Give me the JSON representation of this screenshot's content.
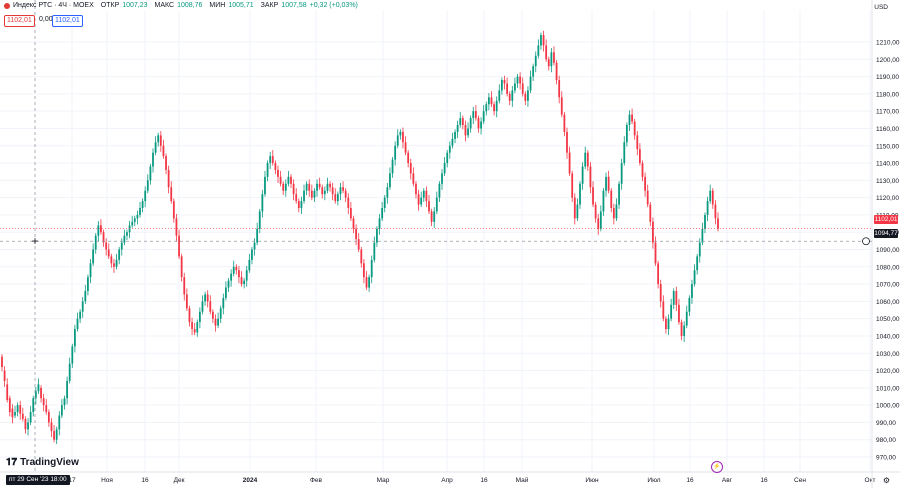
{
  "header": {
    "symbol_title": "Индекс РТС · 4Ч · MOEX",
    "ohlc_open_label": "ОТКР",
    "ohlc_open": "1007,23",
    "ohlc_high_label": "МАКС",
    "ohlc_high": "1008,76",
    "ohlc_low_label": "МИН",
    "ohlc_low": "1005,71",
    "ohlc_close_label": "ЗАКР",
    "ohlc_close": "1007,58",
    "ohlc_change": "+0,32 (+0,03%)",
    "sell_price": "1102,01",
    "spread": "0,00",
    "buy_price": "1102,01"
  },
  "currency": "USD",
  "last_price_tag": "1102,01",
  "crosshair_price_tag": "1094,77",
  "crosshair_date_tag": "пт 29 Сен '23  18:00",
  "brand": "TradingView",
  "colors": {
    "up": "#089981",
    "down": "#f23645",
    "grid": "#f0f3fa",
    "axis_text": "#131722"
  },
  "chart_data": {
    "type": "candlestick",
    "title": "Индекс РТС · 4Ч · MOEX",
    "ylim": [
      965,
      1215
    ],
    "y_ticks": [
      "1210,00",
      "1200,00",
      "1190,00",
      "1180,00",
      "1170,00",
      "1160,00",
      "1150,00",
      "1140,00",
      "1130,00",
      "1120,00",
      "1110,00",
      "1100,00",
      "1090,00",
      "1080,00",
      "1070,00",
      "1060,00",
      "1050,00",
      "1040,00",
      "1030,00",
      "1020,00",
      "1010,00",
      "1000,00",
      "990,00",
      "980,00",
      "970,00"
    ],
    "x_ticks": [
      "17",
      "Ноя",
      "16",
      "Дек",
      "2024",
      "Фев",
      "Мар",
      "Апр",
      "16",
      "Май",
      "Июн",
      "Июл",
      "16",
      "Авг",
      "16",
      "Сен",
      "Окт"
    ],
    "series": [
      {
        "name": "Индекс РТС",
        "points": [
          [
            1028,
            1022
          ],
          [
            1020,
            1014
          ],
          [
            1012,
            1003
          ],
          [
            1004,
            996
          ],
          [
            998,
            993
          ],
          [
            994,
            996
          ],
          [
            996,
            1000
          ],
          [
            1000,
            995
          ],
          [
            995,
            992
          ],
          [
            992,
            986
          ],
          [
            986,
            990
          ],
          [
            990,
            996
          ],
          [
            996,
            1004
          ],
          [
            1004,
            1008
          ],
          [
            1008,
            1012
          ],
          [
            1010,
            1004
          ],
          [
            1004,
            1000
          ],
          [
            1000,
            996
          ],
          [
            996,
            990
          ],
          [
            990,
            985
          ],
          [
            985,
            980
          ],
          [
            980,
            986
          ],
          [
            986,
            994
          ],
          [
            994,
            1000
          ],
          [
            1000,
            1004
          ],
          [
            1004,
            1014
          ],
          [
            1014,
            1024
          ],
          [
            1024,
            1034
          ],
          [
            1034,
            1044
          ],
          [
            1044,
            1050
          ],
          [
            1050,
            1054
          ],
          [
            1054,
            1060
          ],
          [
            1060,
            1066
          ],
          [
            1066,
            1074
          ],
          [
            1074,
            1082
          ],
          [
            1082,
            1090
          ],
          [
            1090,
            1098
          ],
          [
            1098,
            1104
          ],
          [
            1104,
            1100
          ],
          [
            1100,
            1094
          ],
          [
            1094,
            1090
          ],
          [
            1090,
            1086
          ],
          [
            1086,
            1082
          ],
          [
            1082,
            1080
          ],
          [
            1080,
            1084
          ],
          [
            1084,
            1090
          ],
          [
            1090,
            1094
          ],
          [
            1094,
            1098
          ],
          [
            1098,
            1100
          ],
          [
            1100,
            1104
          ],
          [
            1104,
            1106
          ],
          [
            1106,
            1108
          ],
          [
            1108,
            1110
          ],
          [
            1110,
            1114
          ],
          [
            1114,
            1118
          ],
          [
            1118,
            1124
          ],
          [
            1124,
            1130
          ],
          [
            1130,
            1138
          ],
          [
            1138,
            1146
          ],
          [
            1146,
            1152
          ],
          [
            1152,
            1156
          ],
          [
            1156,
            1150
          ],
          [
            1150,
            1144
          ],
          [
            1144,
            1136
          ],
          [
            1136,
            1126
          ],
          [
            1126,
            1118
          ],
          [
            1118,
            1108
          ],
          [
            1108,
            1098
          ],
          [
            1098,
            1086
          ],
          [
            1086,
            1074
          ],
          [
            1074,
            1064
          ],
          [
            1064,
            1056
          ],
          [
            1056,
            1048
          ],
          [
            1048,
            1044
          ],
          [
            1044,
            1042
          ],
          [
            1042,
            1048
          ],
          [
            1048,
            1054
          ],
          [
            1054,
            1060
          ],
          [
            1060,
            1064
          ],
          [
            1064,
            1060
          ],
          [
            1060,
            1054
          ],
          [
            1054,
            1050
          ],
          [
            1050,
            1046
          ],
          [
            1046,
            1050
          ],
          [
            1050,
            1056
          ],
          [
            1056,
            1062
          ],
          [
            1062,
            1068
          ],
          [
            1068,
            1072
          ],
          [
            1072,
            1076
          ],
          [
            1076,
            1080
          ],
          [
            1080,
            1078
          ],
          [
            1078,
            1074
          ],
          [
            1074,
            1070
          ],
          [
            1070,
            1072
          ],
          [
            1072,
            1078
          ],
          [
            1078,
            1084
          ],
          [
            1084,
            1090
          ],
          [
            1090,
            1094
          ],
          [
            1094,
            1102
          ],
          [
            1102,
            1112
          ],
          [
            1112,
            1122
          ],
          [
            1122,
            1132
          ],
          [
            1132,
            1140
          ],
          [
            1140,
            1144
          ],
          [
            1144,
            1140
          ],
          [
            1140,
            1136
          ],
          [
            1136,
            1132
          ],
          [
            1132,
            1128
          ],
          [
            1128,
            1124
          ],
          [
            1124,
            1128
          ],
          [
            1128,
            1132
          ],
          [
            1132,
            1128
          ],
          [
            1128,
            1122
          ],
          [
            1122,
            1118
          ],
          [
            1118,
            1114
          ],
          [
            1114,
            1118
          ],
          [
            1118,
            1124
          ],
          [
            1124,
            1128
          ],
          [
            1128,
            1124
          ],
          [
            1124,
            1120
          ],
          [
            1120,
            1124
          ],
          [
            1124,
            1128
          ],
          [
            1128,
            1126
          ],
          [
            1126,
            1122
          ],
          [
            1122,
            1124
          ],
          [
            1124,
            1128
          ],
          [
            1128,
            1126
          ],
          [
            1126,
            1122
          ],
          [
            1122,
            1118
          ],
          [
            1118,
            1122
          ],
          [
            1122,
            1126
          ],
          [
            1126,
            1124
          ],
          [
            1124,
            1120
          ],
          [
            1120,
            1114
          ],
          [
            1114,
            1108
          ],
          [
            1108,
            1102
          ],
          [
            1102,
            1096
          ],
          [
            1096,
            1090
          ],
          [
            1090,
            1082
          ],
          [
            1082,
            1074
          ],
          [
            1074,
            1068
          ],
          [
            1068,
            1074
          ],
          [
            1074,
            1084
          ],
          [
            1084,
            1094
          ],
          [
            1094,
            1102
          ],
          [
            1102,
            1108
          ],
          [
            1108,
            1114
          ],
          [
            1114,
            1120
          ],
          [
            1120,
            1126
          ],
          [
            1126,
            1134
          ],
          [
            1134,
            1142
          ],
          [
            1142,
            1150
          ],
          [
            1150,
            1156
          ],
          [
            1156,
            1158
          ],
          [
            1158,
            1152
          ],
          [
            1152,
            1146
          ],
          [
            1146,
            1140
          ],
          [
            1140,
            1134
          ],
          [
            1134,
            1128
          ],
          [
            1128,
            1122
          ],
          [
            1122,
            1116
          ],
          [
            1116,
            1120
          ],
          [
            1120,
            1124
          ],
          [
            1124,
            1118
          ],
          [
            1118,
            1112
          ],
          [
            1112,
            1106
          ],
          [
            1106,
            1112
          ],
          [
            1112,
            1120
          ],
          [
            1120,
            1128
          ],
          [
            1128,
            1134
          ],
          [
            1134,
            1140
          ],
          [
            1140,
            1146
          ],
          [
            1146,
            1150
          ],
          [
            1150,
            1154
          ],
          [
            1154,
            1158
          ],
          [
            1158,
            1162
          ],
          [
            1162,
            1166
          ],
          [
            1166,
            1162
          ],
          [
            1162,
            1156
          ],
          [
            1156,
            1160
          ],
          [
            1160,
            1166
          ],
          [
            1166,
            1170
          ],
          [
            1170,
            1166
          ],
          [
            1166,
            1160
          ],
          [
            1160,
            1164
          ],
          [
            1164,
            1170
          ],
          [
            1170,
            1174
          ],
          [
            1174,
            1178
          ],
          [
            1178,
            1174
          ],
          [
            1174,
            1170
          ],
          [
            1170,
            1176
          ],
          [
            1176,
            1182
          ],
          [
            1182,
            1188
          ],
          [
            1188,
            1186
          ],
          [
            1186,
            1180
          ],
          [
            1180,
            1176
          ],
          [
            1176,
            1182
          ],
          [
            1182,
            1186
          ],
          [
            1186,
            1190
          ],
          [
            1190,
            1186
          ],
          [
            1186,
            1180
          ],
          [
            1180,
            1176
          ],
          [
            1176,
            1182
          ],
          [
            1182,
            1190
          ],
          [
            1190,
            1196
          ],
          [
            1196,
            1202
          ],
          [
            1202,
            1208
          ],
          [
            1208,
            1214
          ],
          [
            1214,
            1208
          ],
          [
            1208,
            1200
          ],
          [
            1200,
            1196
          ],
          [
            1196,
            1204
          ],
          [
            1204,
            1198
          ],
          [
            1198,
            1188
          ],
          [
            1188,
            1178
          ],
          [
            1178,
            1168
          ],
          [
            1168,
            1158
          ],
          [
            1158,
            1146
          ],
          [
            1146,
            1134
          ],
          [
            1134,
            1120
          ],
          [
            1120,
            1108
          ],
          [
            1108,
            1116
          ],
          [
            1116,
            1128
          ],
          [
            1128,
            1138
          ],
          [
            1138,
            1146
          ],
          [
            1146,
            1138
          ],
          [
            1138,
            1126
          ],
          [
            1126,
            1116
          ],
          [
            1116,
            1108
          ],
          [
            1108,
            1102
          ],
          [
            1102,
            1112
          ],
          [
            1112,
            1124
          ],
          [
            1124,
            1132
          ],
          [
            1132,
            1124
          ],
          [
            1124,
            1114
          ],
          [
            1114,
            1108
          ],
          [
            1108,
            1116
          ],
          [
            1116,
            1128
          ],
          [
            1128,
            1140
          ],
          [
            1140,
            1152
          ],
          [
            1152,
            1162
          ],
          [
            1162,
            1168
          ],
          [
            1168,
            1164
          ],
          [
            1164,
            1156
          ],
          [
            1156,
            1148
          ],
          [
            1148,
            1140
          ],
          [
            1140,
            1132
          ],
          [
            1132,
            1124
          ],
          [
            1124,
            1116
          ],
          [
            1116,
            1106
          ],
          [
            1106,
            1094
          ],
          [
            1094,
            1082
          ],
          [
            1082,
            1070
          ],
          [
            1070,
            1060
          ],
          [
            1060,
            1050
          ],
          [
            1050,
            1044
          ],
          [
            1044,
            1050
          ],
          [
            1050,
            1058
          ],
          [
            1058,
            1066
          ],
          [
            1066,
            1058
          ],
          [
            1058,
            1048
          ],
          [
            1048,
            1040
          ],
          [
            1040,
            1046
          ],
          [
            1046,
            1054
          ],
          [
            1054,
            1062
          ],
          [
            1062,
            1070
          ],
          [
            1070,
            1078
          ],
          [
            1078,
            1086
          ],
          [
            1086,
            1094
          ],
          [
            1094,
            1102
          ],
          [
            1102,
            1110
          ],
          [
            1110,
            1118
          ],
          [
            1118,
            1124
          ],
          [
            1124,
            1116
          ],
          [
            1116,
            1108
          ],
          [
            1108,
            1102
          ]
        ]
      }
    ]
  }
}
